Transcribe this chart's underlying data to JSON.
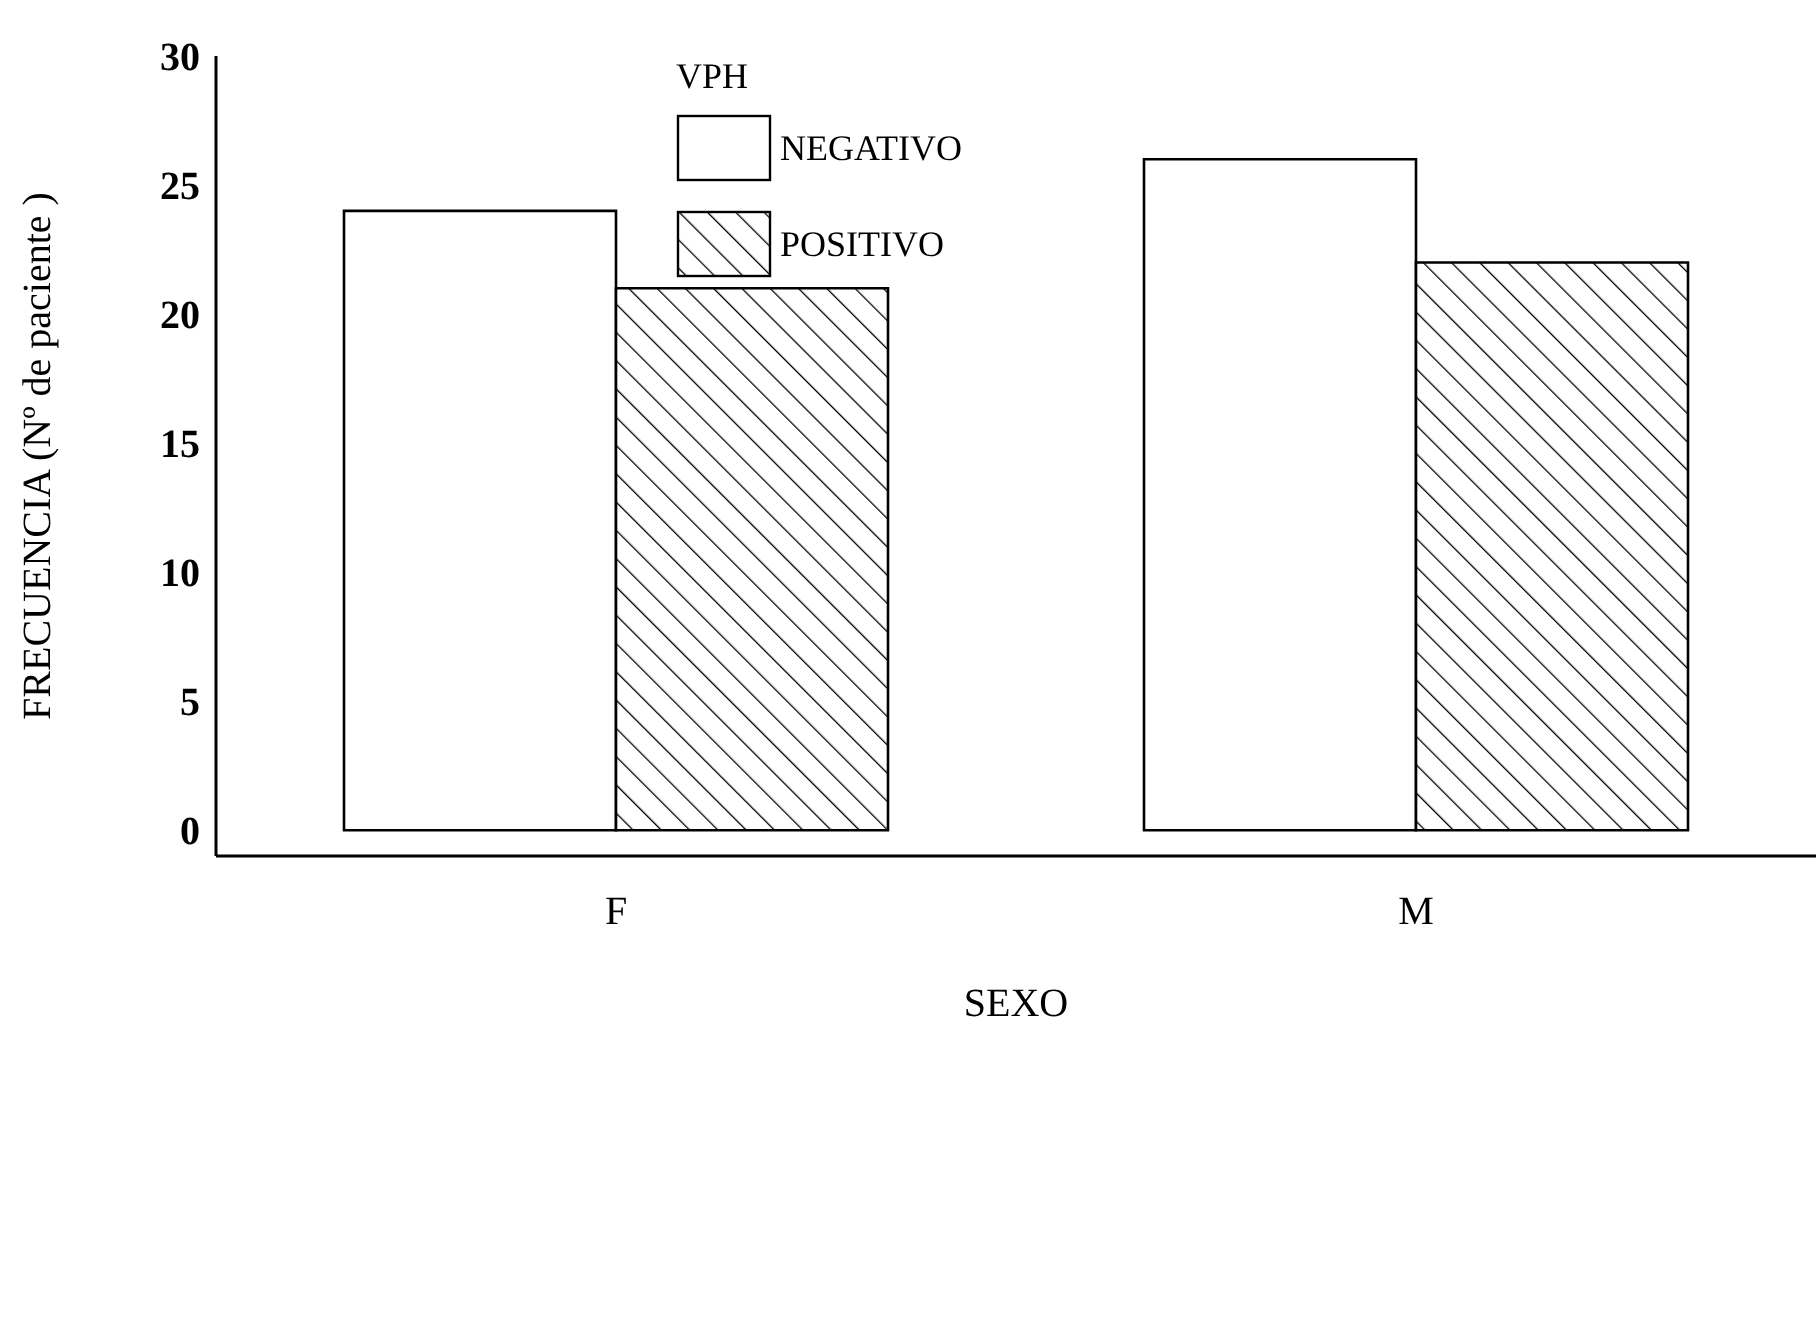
{
  "chart_data": {
    "type": "bar",
    "xlabel": "SEXO",
    "ylabel": "FRECUENCIA  (Nº de paciente )",
    "legend_title": "VPH",
    "categories": [
      "F",
      "M"
    ],
    "series": [
      {
        "name": "NEGATIVO",
        "color": "#ffffff",
        "values": [
          24,
          26
        ]
      },
      {
        "name": "POSITIVO",
        "color": "#000000",
        "values": [
          21,
          22
        ]
      }
    ],
    "ylim": [
      -1,
      30
    ],
    "yticks": [
      0,
      5,
      10,
      15,
      20,
      25,
      30
    ],
    "legend": "top"
  }
}
